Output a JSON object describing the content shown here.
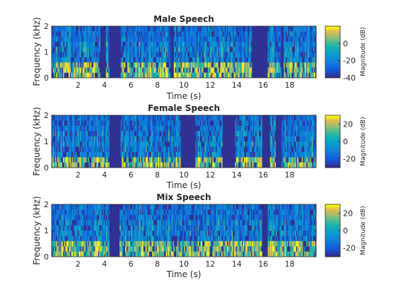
{
  "chart_data": [
    {
      "type": "heatmap",
      "title": "Male Speech",
      "xlabel": "Time (s)",
      "ylabel": "Frequency (kHz)",
      "xlim": [
        0,
        20
      ],
      "ylim": [
        0,
        2
      ],
      "xticks": [
        2,
        4,
        6,
        8,
        10,
        12,
        14,
        16,
        18
      ],
      "xtick_labels": [
        "2",
        "4",
        "6",
        "8",
        "10",
        "12",
        "14",
        "16",
        "18"
      ],
      "yticks": [
        0,
        1,
        2
      ],
      "ytick_labels": [
        "0",
        "1",
        "2"
      ],
      "colorbar": {
        "label": "Magnitude (dB)",
        "limits": [
          -40,
          20
        ],
        "ticks": [
          0,
          -20,
          -40
        ],
        "tick_labels": [
          "0",
          "-20",
          "-40"
        ]
      },
      "colormap": "parula",
      "silence_intervals_s": [
        [
          3.6,
          4.1
        ],
        [
          4.3,
          5.2
        ],
        [
          8.9,
          9.2
        ],
        [
          15.1,
          16.3
        ],
        [
          17.3,
          17.5
        ]
      ],
      "low_freq_energy_band_khz": [
        0,
        0.5
      ],
      "seed": 11
    },
    {
      "type": "heatmap",
      "title": "Female Speech",
      "xlabel": "Time (s)",
      "ylabel": "Frequency (kHz)",
      "xlim": [
        0,
        20
      ],
      "ylim": [
        0,
        2
      ],
      "xticks": [
        2,
        4,
        6,
        8,
        10,
        12,
        14,
        16,
        18
      ],
      "xtick_labels": [
        "2",
        "4",
        "6",
        "8",
        "10",
        "12",
        "14",
        "16",
        "18"
      ],
      "yticks": [
        0,
        1,
        2
      ],
      "ytick_labels": [
        "0",
        "1",
        "2"
      ],
      "colorbar": {
        "label": "Magnitude (dB)",
        "limits": [
          -30,
          30
        ],
        "ticks": [
          20,
          0,
          -20
        ],
        "tick_labels": [
          "20",
          "0",
          "-20"
        ]
      },
      "colormap": "parula",
      "silence_intervals_s": [
        [
          4.3,
          5.2
        ],
        [
          9.7,
          10.8
        ],
        [
          12.9,
          13.8
        ],
        [
          15.9,
          16.5
        ],
        [
          16.9,
          17.3
        ]
      ],
      "low_freq_energy_band_khz": [
        0,
        0.25
      ],
      "seed": 23
    },
    {
      "type": "heatmap",
      "title": "Mix Speech",
      "xlabel": "Time (s)",
      "ylabel": "Frequency (kHz)",
      "xlim": [
        0,
        20
      ],
      "ylim": [
        0,
        2
      ],
      "xticks": [
        2,
        4,
        6,
        8,
        10,
        12,
        14,
        16,
        18
      ],
      "xtick_labels": [
        "2",
        "4",
        "6",
        "8",
        "10",
        "12",
        "14",
        "16",
        "18"
      ],
      "yticks": [
        0,
        1,
        2
      ],
      "ytick_labels": [
        "0",
        "1",
        "2"
      ],
      "colorbar": {
        "label": "Magnitude (dB)",
        "limits": [
          -30,
          30
        ],
        "ticks": [
          20,
          0,
          -20
        ],
        "tick_labels": [
          "20",
          "0",
          "-20"
        ]
      },
      "colormap": "parula",
      "silence_intervals_s": [
        [
          4.3,
          5.1
        ],
        [
          15.9,
          16.3
        ]
      ],
      "low_freq_energy_band_khz": [
        0,
        0.5
      ],
      "seed": 37
    }
  ]
}
